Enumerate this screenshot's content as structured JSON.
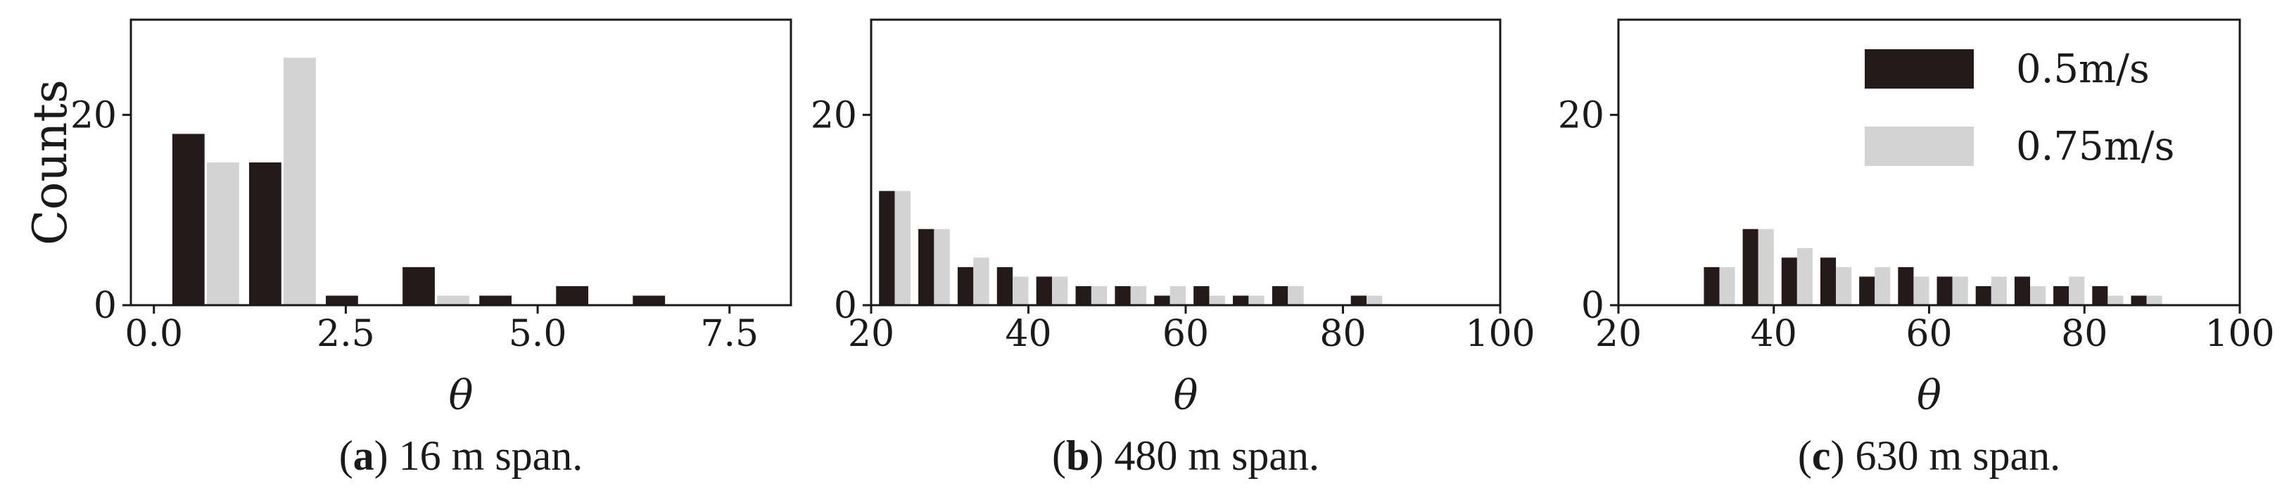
{
  "colors": {
    "series_dark": "#231a19",
    "series_light": "#d3d3d3",
    "axis": "#1a1a1a"
  },
  "legend": {
    "placement": "top-right",
    "panel": 2
  },
  "chart_data": [
    {
      "type": "bar",
      "caption_letter": "a",
      "caption_text": " 16 m span.",
      "xlabel": "θ",
      "ylabel": "Counts",
      "xlim": [
        -0.3,
        8.3
      ],
      "ylim": [
        0,
        30
      ],
      "xticks": [
        0.0,
        2.5,
        5.0,
        7.5
      ],
      "xtick_labels": [
        "0.0",
        "2.5",
        "5.0",
        "7.5"
      ],
      "yticks": [
        0,
        20
      ],
      "ytick_labels": [
        "0",
        "20"
      ],
      "bar_width": 0.42,
      "series": [
        {
          "name": "0.5m/s",
          "color": "#231a19",
          "points": [
            [
              0.45,
              18
            ],
            [
              1.45,
              15
            ],
            [
              2.45,
              1
            ],
            [
              3.45,
              4
            ],
            [
              4.45,
              1
            ],
            [
              5.45,
              2
            ],
            [
              6.45,
              1
            ]
          ]
        },
        {
          "name": "0.75m/s",
          "color": "#d3d3d3",
          "points": [
            [
              0.9,
              15
            ],
            [
              1.9,
              26
            ],
            [
              3.9,
              1
            ]
          ]
        }
      ]
    },
    {
      "type": "bar",
      "caption_letter": "b",
      "caption_text": " 480 m span.",
      "xlabel": "θ",
      "ylabel": "",
      "xlim": [
        20,
        100
      ],
      "ylim": [
        0,
        30
      ],
      "xticks": [
        20,
        40,
        60,
        80,
        100
      ],
      "xtick_labels": [
        "20",
        "40",
        "60",
        "80",
        "100"
      ],
      "yticks": [
        0,
        20
      ],
      "ytick_labels": [
        "0",
        "20"
      ],
      "bar_width": 2.0,
      "series": [
        {
          "name": "0.5m/s",
          "color": "#231a19",
          "points": [
            [
              22,
              12
            ],
            [
              27,
              8
            ],
            [
              32,
              4
            ],
            [
              37,
              4
            ],
            [
              42,
              3
            ],
            [
              47,
              2
            ],
            [
              52,
              2
            ],
            [
              57,
              1
            ],
            [
              62,
              2
            ],
            [
              67,
              1
            ],
            [
              72,
              2
            ],
            [
              82,
              1
            ]
          ]
        },
        {
          "name": "0.75m/s",
          "color": "#d3d3d3",
          "points": [
            [
              24,
              12
            ],
            [
              29,
              8
            ],
            [
              34,
              5
            ],
            [
              39,
              3
            ],
            [
              44,
              3
            ],
            [
              49,
              2
            ],
            [
              54,
              2
            ],
            [
              59,
              2
            ],
            [
              64,
              1
            ],
            [
              69,
              1
            ],
            [
              74,
              2
            ],
            [
              84,
              1
            ]
          ]
        }
      ]
    },
    {
      "type": "bar",
      "caption_letter": "c",
      "caption_text": " 630 m span.",
      "xlabel": "θ",
      "ylabel": "",
      "xlim": [
        20,
        100
      ],
      "ylim": [
        0,
        30
      ],
      "xticks": [
        20,
        40,
        60,
        80,
        100
      ],
      "xtick_labels": [
        "20",
        "40",
        "60",
        "80",
        "100"
      ],
      "yticks": [
        0,
        20
      ],
      "ytick_labels": [
        "0",
        "20"
      ],
      "bar_width": 2.0,
      "series": [
        {
          "name": "0.5m/s",
          "color": "#231a19",
          "points": [
            [
              32,
              4
            ],
            [
              37,
              8
            ],
            [
              42,
              5
            ],
            [
              47,
              5
            ],
            [
              52,
              3
            ],
            [
              57,
              4
            ],
            [
              62,
              3
            ],
            [
              67,
              2
            ],
            [
              72,
              3
            ],
            [
              77,
              2
            ],
            [
              82,
              2
            ],
            [
              87,
              1
            ]
          ]
        },
        {
          "name": "0.75m/s",
          "color": "#d3d3d3",
          "points": [
            [
              34,
              4
            ],
            [
              39,
              8
            ],
            [
              44,
              6
            ],
            [
              49,
              4
            ],
            [
              54,
              4
            ],
            [
              59,
              3
            ],
            [
              64,
              3
            ],
            [
              69,
              3
            ],
            [
              74,
              2
            ],
            [
              79,
              3
            ],
            [
              84,
              1
            ],
            [
              89,
              1
            ]
          ]
        }
      ]
    }
  ]
}
